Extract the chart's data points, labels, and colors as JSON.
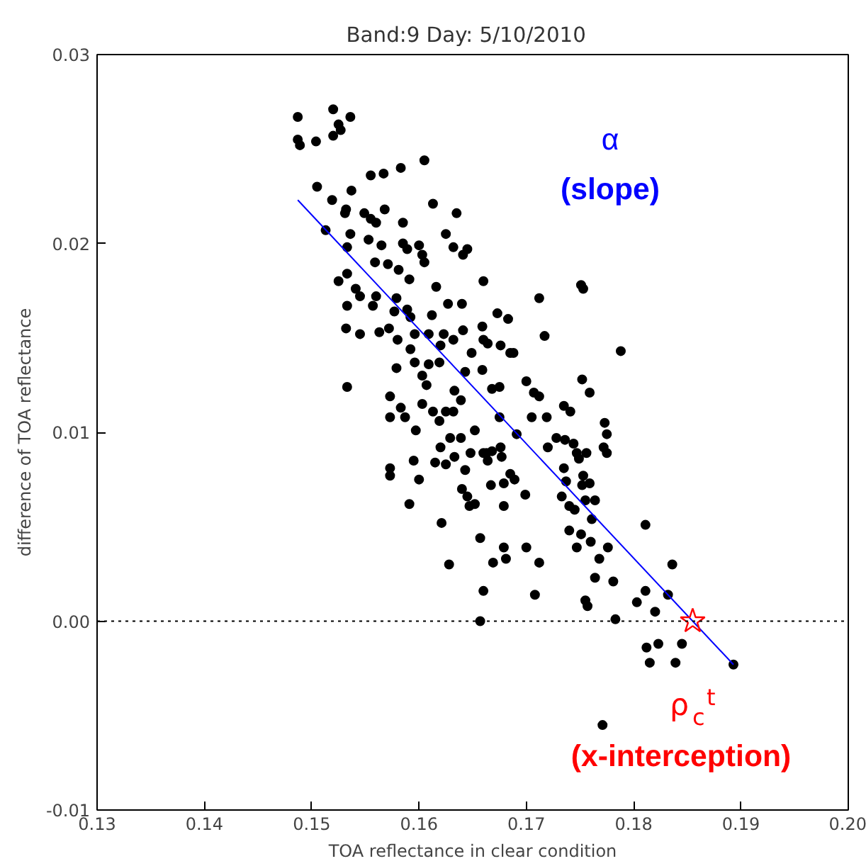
{
  "chart_data": {
    "type": "scatter",
    "title": "Band:9   Day: 5/10/2010",
    "xlabel": "TOA reflectance in clear condition",
    "ylabel": "difference of TOA reflectance",
    "xlim": [
      0.13,
      0.2
    ],
    "ylim": [
      -0.01,
      0.03
    ],
    "xticks": [
      {
        "value": 0.13,
        "label": "0.13"
      },
      {
        "value": 0.14,
        "label": "0.14"
      },
      {
        "value": 0.15,
        "label": "0.15"
      },
      {
        "value": 0.16,
        "label": "0.16"
      },
      {
        "value": 0.17,
        "label": "0.17"
      },
      {
        "value": 0.18,
        "label": "0.18"
      },
      {
        "value": 0.19,
        "label": "0.19"
      },
      {
        "value": 0.2,
        "label": "0.20"
      }
    ],
    "yticks": [
      {
        "value": -0.01,
        "label": "-0.01"
      },
      {
        "value": 0,
        "label": "0.00"
      },
      {
        "value": 0.01,
        "label": "0.01"
      },
      {
        "value": 0.02,
        "label": "0.02"
      },
      {
        "value": 0.03,
        "label": "0.03"
      }
    ],
    "grid": false,
    "series": [
      {
        "type": "scatter",
        "marker": "circle",
        "color": "#000000",
        "x": [
          0.1487,
          0.152,
          0.1536,
          0.1525,
          0.1527,
          0.152,
          0.1487,
          0.1489,
          0.1504,
          0.1605,
          0.1583,
          0.1567,
          0.1555,
          0.1505,
          0.1537,
          0.1519,
          0.1613,
          0.1532,
          0.1531,
          0.1635,
          0.1549,
          0.1568,
          0.1555,
          0.156,
          0.1585,
          0.1513,
          0.1536,
          0.1553,
          0.1625,
          0.1565,
          0.1585,
          0.1589,
          0.16,
          0.1632,
          0.1645,
          0.1533,
          0.1603,
          0.1641,
          0.1605,
          0.1559,
          0.1571,
          0.1581,
          0.1533,
          0.1591,
          0.1525,
          0.1616,
          0.1541,
          0.1545,
          0.156,
          0.166,
          0.1533,
          0.1557,
          0.1579,
          0.1589,
          0.1577,
          0.164,
          0.1627,
          0.1612,
          0.1592,
          0.1532,
          0.1545,
          0.1563,
          0.1572,
          0.1596,
          0.162,
          0.1609,
          0.1623,
          0.1641,
          0.158,
          0.1632,
          0.1659,
          0.166,
          0.1592,
          0.1596,
          0.1579,
          0.1609,
          0.1619,
          0.1649,
          0.1533,
          0.1573,
          0.1583,
          0.1587,
          0.1573,
          0.1603,
          0.1607,
          0.1603,
          0.1613,
          0.1619,
          0.1625,
          0.1632,
          0.1633,
          0.1639,
          0.1643,
          0.1659,
          0.1597,
          0.162,
          0.1629,
          0.1639,
          0.1633,
          0.1648,
          0.1652,
          0.166,
          0.1595,
          0.1615,
          0.1625,
          0.1643,
          0.1573,
          0.1573,
          0.16,
          0.164,
          0.1645,
          0.1647,
          0.1652,
          0.1591,
          0.1621,
          0.1657,
          0.1628,
          0.166,
          0.1657,
          0.1712,
          0.1751,
          0.1753,
          0.1673,
          0.1683,
          0.1717,
          0.1664,
          0.1676,
          0.1685,
          0.1688,
          0.1788,
          0.1668,
          0.1675,
          0.17,
          0.1707,
          0.1712,
          0.1752,
          0.1759,
          0.1735,
          0.1741,
          0.1675,
          0.1705,
          0.1719,
          0.1691,
          0.1773,
          0.1775,
          0.1728,
          0.1736,
          0.1744,
          0.172,
          0.1747,
          0.1749,
          0.1756,
          0.1772,
          0.1775,
          0.1676,
          0.1677,
          0.1663,
          0.1668,
          0.1664,
          0.1735,
          0.1685,
          0.1689,
          0.1753,
          0.1737,
          0.1752,
          0.1759,
          0.1667,
          0.1679,
          0.1699,
          0.1733,
          0.1755,
          0.1764,
          0.1679,
          0.174,
          0.1745,
          0.1761,
          0.1811,
          0.1679,
          0.1681,
          0.17,
          0.174,
          0.1751,
          0.1747,
          0.176,
          0.1776,
          0.1712,
          0.1669,
          0.1768,
          0.1836,
          0.1764,
          0.1781,
          0.1708,
          0.1755,
          0.1757,
          0.1803,
          0.1811,
          0.1832,
          0.182,
          0.1783,
          0.1812,
          0.1823,
          0.1845,
          0.1815,
          0.1839,
          0.1893,
          0.1771
        ],
        "values": [
          0.0267,
          0.0271,
          0.0267,
          0.0263,
          0.026,
          0.0257,
          0.0255,
          0.0252,
          0.0254,
          0.0244,
          0.024,
          0.0237,
          0.0236,
          0.023,
          0.0228,
          0.0223,
          0.0221,
          0.0218,
          0.0216,
          0.0216,
          0.0216,
          0.0218,
          0.0213,
          0.0211,
          0.0211,
          0.0207,
          0.0205,
          0.0202,
          0.0205,
          0.0199,
          0.02,
          0.0197,
          0.0199,
          0.0198,
          0.0197,
          0.0198,
          0.0194,
          0.0194,
          0.019,
          0.019,
          0.0189,
          0.0186,
          0.0184,
          0.0181,
          0.018,
          0.0177,
          0.0176,
          0.0172,
          0.0172,
          0.018,
          0.0167,
          0.0167,
          0.0171,
          0.0165,
          0.0164,
          0.0168,
          0.0168,
          0.0162,
          0.0161,
          0.0155,
          0.0152,
          0.0153,
          0.0155,
          0.0152,
          0.0146,
          0.0152,
          0.0152,
          0.0154,
          0.0149,
          0.0149,
          0.0156,
          0.0149,
          0.0144,
          0.0137,
          0.0134,
          0.0136,
          0.0137,
          0.0142,
          0.0124,
          0.0119,
          0.0113,
          0.0108,
          0.0108,
          0.013,
          0.0125,
          0.0115,
          0.0111,
          0.0106,
          0.0111,
          0.0111,
          0.0122,
          0.0117,
          0.0132,
          0.0133,
          0.0101,
          0.0092,
          0.0097,
          0.0097,
          0.0087,
          0.0089,
          0.0101,
          0.0089,
          0.0085,
          0.0084,
          0.0083,
          0.008,
          0.0081,
          0.0077,
          0.0075,
          0.007,
          0.0066,
          0.0061,
          0.0062,
          0.0062,
          0.0052,
          0.0044,
          0.003,
          0.0016,
          0.0,
          0.0171,
          0.0178,
          0.0176,
          0.0163,
          0.016,
          0.0151,
          0.0147,
          0.0146,
          0.0142,
          0.0142,
          0.0143,
          0.0123,
          0.0124,
          0.0127,
          0.0121,
          0.0119,
          0.0128,
          0.0121,
          0.0114,
          0.0111,
          0.0108,
          0.0108,
          0.0108,
          0.0099,
          0.0105,
          0.0099,
          0.0097,
          0.0096,
          0.0094,
          0.0092,
          0.0089,
          0.0086,
          0.0089,
          0.0092,
          0.0089,
          0.0092,
          0.0087,
          0.0089,
          0.009,
          0.0085,
          0.0081,
          0.0078,
          0.0075,
          0.0077,
          0.0074,
          0.0072,
          0.0073,
          0.0072,
          0.0073,
          0.0067,
          0.0066,
          0.0064,
          0.0064,
          0.0061,
          0.0061,
          0.0059,
          0.0054,
          0.0051,
          0.0039,
          0.0033,
          0.0039,
          0.0048,
          0.0046,
          0.0039,
          0.0042,
          0.0039,
          0.0031,
          0.0031,
          0.0033,
          0.003,
          0.0023,
          0.0021,
          0.0014,
          0.0011,
          0.0008,
          0.001,
          0.0016,
          0.0014,
          0.0005,
          0.0001,
          -0.0014,
          -0.0012,
          -0.0012,
          -0.0022,
          -0.0022,
          -0.0023,
          -0.0055
        ]
      },
      {
        "type": "line",
        "color": "#0000ff",
        "x": [
          0.1487,
          0.1893
        ],
        "values": [
          0.0223,
          -0.0023
        ]
      },
      {
        "type": "scatter",
        "marker": "star",
        "color": "#ff0000",
        "x": [
          0.1855
        ],
        "values": [
          0
        ]
      }
    ],
    "ref_lines": [
      {
        "axis": "y",
        "value": 0,
        "line_style": "dotted",
        "color": "#000000"
      }
    ],
    "annotations": [
      "α",
      "(slope)",
      "ρ$_{c}$$^{t}$",
      "(x-interception)"
    ]
  }
}
